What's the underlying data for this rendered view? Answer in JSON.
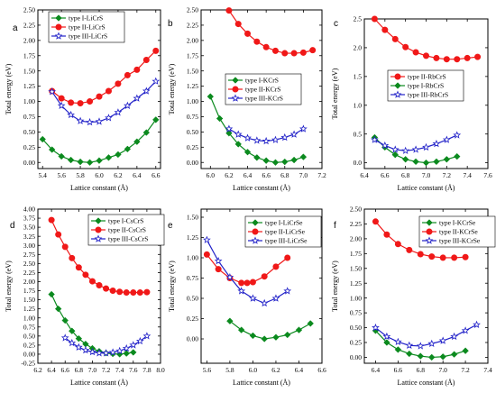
{
  "colors": {
    "type_I": "#0b8a1e",
    "type_II": "#f01818",
    "type_III": "#2020c8"
  },
  "chart_data": [
    {
      "type": "line",
      "letter": "a",
      "xlabel": "Lattice constant (Å)",
      "ylabel": "Total energy (eV)",
      "xlim": [
        5.35,
        6.65
      ],
      "ylim": [
        -0.1,
        2.5
      ],
      "xticks": [
        "5.4",
        "5.6",
        "5.8",
        "6.0",
        "6.2",
        "6.4",
        "6.6"
      ],
      "yticks": [
        "0.00",
        "0.25",
        "0.50",
        "0.75",
        "1.00",
        "1.25",
        "1.50",
        "1.75",
        "2.00",
        "2.25",
        "2.50"
      ],
      "legend_position": "top-left",
      "series": [
        {
          "name": "type I-LiCrS",
          "kind": "I",
          "marker": "diamond",
          "x": [
            5.4,
            5.5,
            5.6,
            5.7,
            5.8,
            5.9,
            6.0,
            6.1,
            6.2,
            6.3,
            6.4,
            6.5,
            6.6
          ],
          "y": [
            0.38,
            0.21,
            0.1,
            0.04,
            0.01,
            0.0,
            0.03,
            0.08,
            0.13,
            0.22,
            0.34,
            0.49,
            0.7
          ]
        },
        {
          "name": "type II-LiCrS",
          "kind": "II",
          "marker": "circle",
          "x": [
            5.5,
            5.6,
            5.7,
            5.8,
            5.9,
            6.0,
            6.1,
            6.2,
            6.3,
            6.4,
            6.5,
            6.6
          ],
          "y": [
            1.17,
            1.05,
            0.98,
            0.97,
            1.0,
            1.08,
            1.17,
            1.29,
            1.43,
            1.52,
            1.68,
            1.83
          ]
        },
        {
          "name": "type III-LiCrS",
          "kind": "III",
          "marker": "star",
          "x": [
            5.5,
            5.6,
            5.7,
            5.8,
            5.9,
            6.0,
            6.1,
            6.2,
            6.3,
            6.4,
            6.5,
            6.6
          ],
          "y": [
            1.16,
            0.93,
            0.78,
            0.68,
            0.66,
            0.67,
            0.73,
            0.82,
            0.93,
            1.05,
            1.17,
            1.33
          ]
        }
      ]
    },
    {
      "type": "line",
      "letter": "b",
      "xlabel": "Lattice constant (Å)",
      "ylabel": "Total energy (eV)",
      "xlim": [
        5.9,
        7.2
      ],
      "ylim": [
        -0.1,
        2.5
      ],
      "xticks": [
        "6.0",
        "6.2",
        "6.4",
        "6.6",
        "6.8",
        "7.0",
        "7.2"
      ],
      "yticks": [
        "0.00",
        "0.25",
        "0.50",
        "0.75",
        "1.00",
        "1.25",
        "1.50",
        "1.75",
        "2.00",
        "2.25",
        "2.50"
      ],
      "legend_position": "middle-right",
      "series": [
        {
          "name": "type I-KCrS",
          "kind": "I",
          "marker": "diamond",
          "x": [
            6.0,
            6.1,
            6.2,
            6.3,
            6.4,
            6.5,
            6.6,
            6.7,
            6.8,
            6.9,
            7.0
          ],
          "y": [
            1.08,
            0.72,
            0.48,
            0.3,
            0.17,
            0.08,
            0.03,
            0.0,
            0.01,
            0.04,
            0.09
          ]
        },
        {
          "name": "type II-KCrS",
          "kind": "II",
          "marker": "circle",
          "x": [
            6.2,
            6.3,
            6.4,
            6.5,
            6.6,
            6.7,
            6.8,
            6.9,
            7.0,
            7.1
          ],
          "y": [
            2.49,
            2.27,
            2.11,
            1.98,
            1.89,
            1.83,
            1.79,
            1.79,
            1.8,
            1.84
          ]
        },
        {
          "name": "type III-KCrS",
          "kind": "III",
          "marker": "star",
          "x": [
            6.2,
            6.3,
            6.4,
            6.5,
            6.6,
            6.7,
            6.8,
            6.9,
            7.0
          ],
          "y": [
            0.55,
            0.46,
            0.4,
            0.36,
            0.35,
            0.37,
            0.41,
            0.46,
            0.55
          ]
        }
      ]
    },
    {
      "type": "line",
      "letter": "c",
      "xlabel": "Lattice constant (Å)",
      "ylabel": "Total energy (eV)",
      "xlim": [
        6.4,
        7.6
      ],
      "ylim": [
        -0.1,
        2.5
      ],
      "xticks": [
        "6.4",
        "6.6",
        "6.8",
        "7.0",
        "7.2",
        "7.4",
        "7.6"
      ],
      "yticks": [
        "0.0",
        "0.5",
        "1.0",
        "1.5",
        "2.0",
        "2.5"
      ],
      "legend_position": "middle-right",
      "series": [
        {
          "name": "type II-RbCrS",
          "kind": "II",
          "marker": "circle",
          "x": [
            6.5,
            6.6,
            6.7,
            6.8,
            6.9,
            7.0,
            7.1,
            7.2,
            7.3,
            7.4,
            7.5
          ],
          "y": [
            2.5,
            2.31,
            2.15,
            2.01,
            1.92,
            1.86,
            1.82,
            1.8,
            1.8,
            1.82,
            1.84
          ]
        },
        {
          "name": "type I-RbCrS",
          "kind": "I",
          "marker": "diamond",
          "x": [
            6.5,
            6.6,
            6.7,
            6.8,
            6.9,
            7.0,
            7.1,
            7.2,
            7.3
          ],
          "y": [
            0.44,
            0.27,
            0.14,
            0.06,
            0.02,
            0.0,
            0.02,
            0.06,
            0.11
          ]
        },
        {
          "name": "type III-RbCrS",
          "kind": "III",
          "marker": "star",
          "x": [
            6.5,
            6.6,
            6.7,
            6.8,
            6.9,
            7.0,
            7.1,
            7.2,
            7.3
          ],
          "y": [
            0.4,
            0.3,
            0.23,
            0.21,
            0.23,
            0.27,
            0.33,
            0.4,
            0.48
          ]
        }
      ]
    },
    {
      "type": "line",
      "letter": "d",
      "xlabel": "Lattice constant (Å)",
      "ylabel": "Total energy (eV)",
      "xlim": [
        6.2,
        8.0
      ],
      "ylim": [
        -0.25,
        4.0
      ],
      "xticks": [
        "6.2",
        "6.4",
        "6.6",
        "6.8",
        "7.0",
        "7.2",
        "7.4",
        "7.6",
        "7.8",
        "8.0"
      ],
      "yticks": [
        "-0.25",
        "0.00",
        "0.25",
        "0.50",
        "0.75",
        "1.00",
        "1.25",
        "1.50",
        "1.75",
        "2.00",
        "2.25",
        "2.50",
        "2.75",
        "3.00",
        "3.25",
        "3.50",
        "3.75",
        "4.00"
      ],
      "legend_position": "top-right",
      "series": [
        {
          "name": "type I-CsCrS",
          "kind": "I",
          "marker": "diamond",
          "x": [
            6.4,
            6.5,
            6.6,
            6.7,
            6.8,
            6.9,
            7.0,
            7.1,
            7.2,
            7.3,
            7.4,
            7.5,
            7.6
          ],
          "y": [
            1.65,
            1.25,
            0.93,
            0.64,
            0.43,
            0.28,
            0.16,
            0.08,
            0.03,
            0.01,
            0.0,
            0.02,
            0.05
          ]
        },
        {
          "name": "type II-CsCrS",
          "kind": "II",
          "marker": "circle",
          "x": [
            6.4,
            6.5,
            6.6,
            6.7,
            6.8,
            6.9,
            7.0,
            7.1,
            7.2,
            7.3,
            7.4,
            7.5,
            7.6,
            7.7,
            7.8
          ],
          "y": [
            3.7,
            3.3,
            2.96,
            2.65,
            2.39,
            2.19,
            2.01,
            1.9,
            1.81,
            1.75,
            1.72,
            1.7,
            1.7,
            1.7,
            1.71
          ]
        },
        {
          "name": "type III-CsCrS",
          "kind": "III",
          "marker": "star",
          "x": [
            6.6,
            6.7,
            6.8,
            6.9,
            7.0,
            7.1,
            7.2,
            7.3,
            7.4,
            7.5,
            7.6,
            7.7,
            7.8
          ],
          "y": [
            0.45,
            0.31,
            0.19,
            0.11,
            0.06,
            0.03,
            0.03,
            0.05,
            0.09,
            0.16,
            0.25,
            0.36,
            0.5
          ]
        }
      ]
    },
    {
      "type": "line",
      "letter": "e",
      "xlabel": "Lattice constant (Å)",
      "ylabel": "Total energy (eV)",
      "xlim": [
        5.55,
        6.6
      ],
      "ylim": [
        -0.3,
        1.6
      ],
      "xticks": [
        "5.6",
        "5.8",
        "6.0",
        "6.2",
        "6.4",
        "6.6"
      ],
      "yticks": [
        "0.00",
        "0.25",
        "0.50",
        "0.75",
        "1.00",
        "1.25",
        "1.50"
      ],
      "legend_position": "top-right",
      "series": [
        {
          "name": "type I-LiCrSe",
          "kind": "I",
          "marker": "diamond",
          "x": [
            5.8,
            5.9,
            6.0,
            6.1,
            6.2,
            6.3,
            6.4,
            6.5
          ],
          "y": [
            0.22,
            0.11,
            0.04,
            0.0,
            0.02,
            0.05,
            0.11,
            0.19
          ]
        },
        {
          "name": "type II-LiCrSe",
          "kind": "II",
          "marker": "circle",
          "x": [
            5.6,
            5.7,
            5.8,
            5.9,
            5.95,
            6.0,
            6.1,
            6.2,
            6.3
          ],
          "y": [
            1.04,
            0.86,
            0.75,
            0.69,
            0.69,
            0.7,
            0.77,
            0.89,
            1.0
          ]
        },
        {
          "name": "type III-LiCrSe",
          "kind": "III",
          "marker": "star",
          "x": [
            5.6,
            5.7,
            5.8,
            5.9,
            6.0,
            6.1,
            6.2,
            6.3
          ],
          "y": [
            1.22,
            0.96,
            0.76,
            0.59,
            0.5,
            0.44,
            0.5,
            0.59
          ]
        }
      ]
    },
    {
      "type": "line",
      "letter": "f",
      "xlabel": "Lattice constant (Å)",
      "ylabel": "Total energy (eV)",
      "xlim": [
        6.3,
        7.4
      ],
      "ylim": [
        -0.1,
        2.5
      ],
      "xticks": [
        "6.4",
        "6.6",
        "6.8",
        "7.0",
        "7.2",
        "7.4"
      ],
      "yticks": [
        "0.00",
        "0.25",
        "0.50",
        "0.75",
        "1.00",
        "1.25",
        "1.50",
        "1.75",
        "2.00",
        "2.25",
        "2.50"
      ],
      "legend_position": "top-right",
      "series": [
        {
          "name": "type I-KCrSe",
          "kind": "I",
          "marker": "diamond",
          "x": [
            6.4,
            6.5,
            6.6,
            6.7,
            6.8,
            6.9,
            7.0,
            7.1,
            7.2
          ],
          "y": [
            0.45,
            0.25,
            0.13,
            0.06,
            0.02,
            0.0,
            0.01,
            0.05,
            0.11
          ]
        },
        {
          "name": "type II-KCrSe",
          "kind": "II",
          "marker": "circle",
          "x": [
            6.4,
            6.5,
            6.6,
            6.7,
            6.8,
            6.9,
            7.0,
            7.1,
            7.2
          ],
          "y": [
            2.29,
            2.07,
            1.91,
            1.81,
            1.74,
            1.7,
            1.68,
            1.68,
            1.69
          ]
        },
        {
          "name": "type III-KCrSe",
          "kind": "III",
          "marker": "star",
          "x": [
            6.4,
            6.5,
            6.6,
            6.7,
            6.8,
            6.9,
            7.0,
            7.1,
            7.2,
            7.3
          ],
          "y": [
            0.5,
            0.35,
            0.26,
            0.2,
            0.19,
            0.23,
            0.28,
            0.35,
            0.45,
            0.55
          ]
        }
      ]
    }
  ]
}
